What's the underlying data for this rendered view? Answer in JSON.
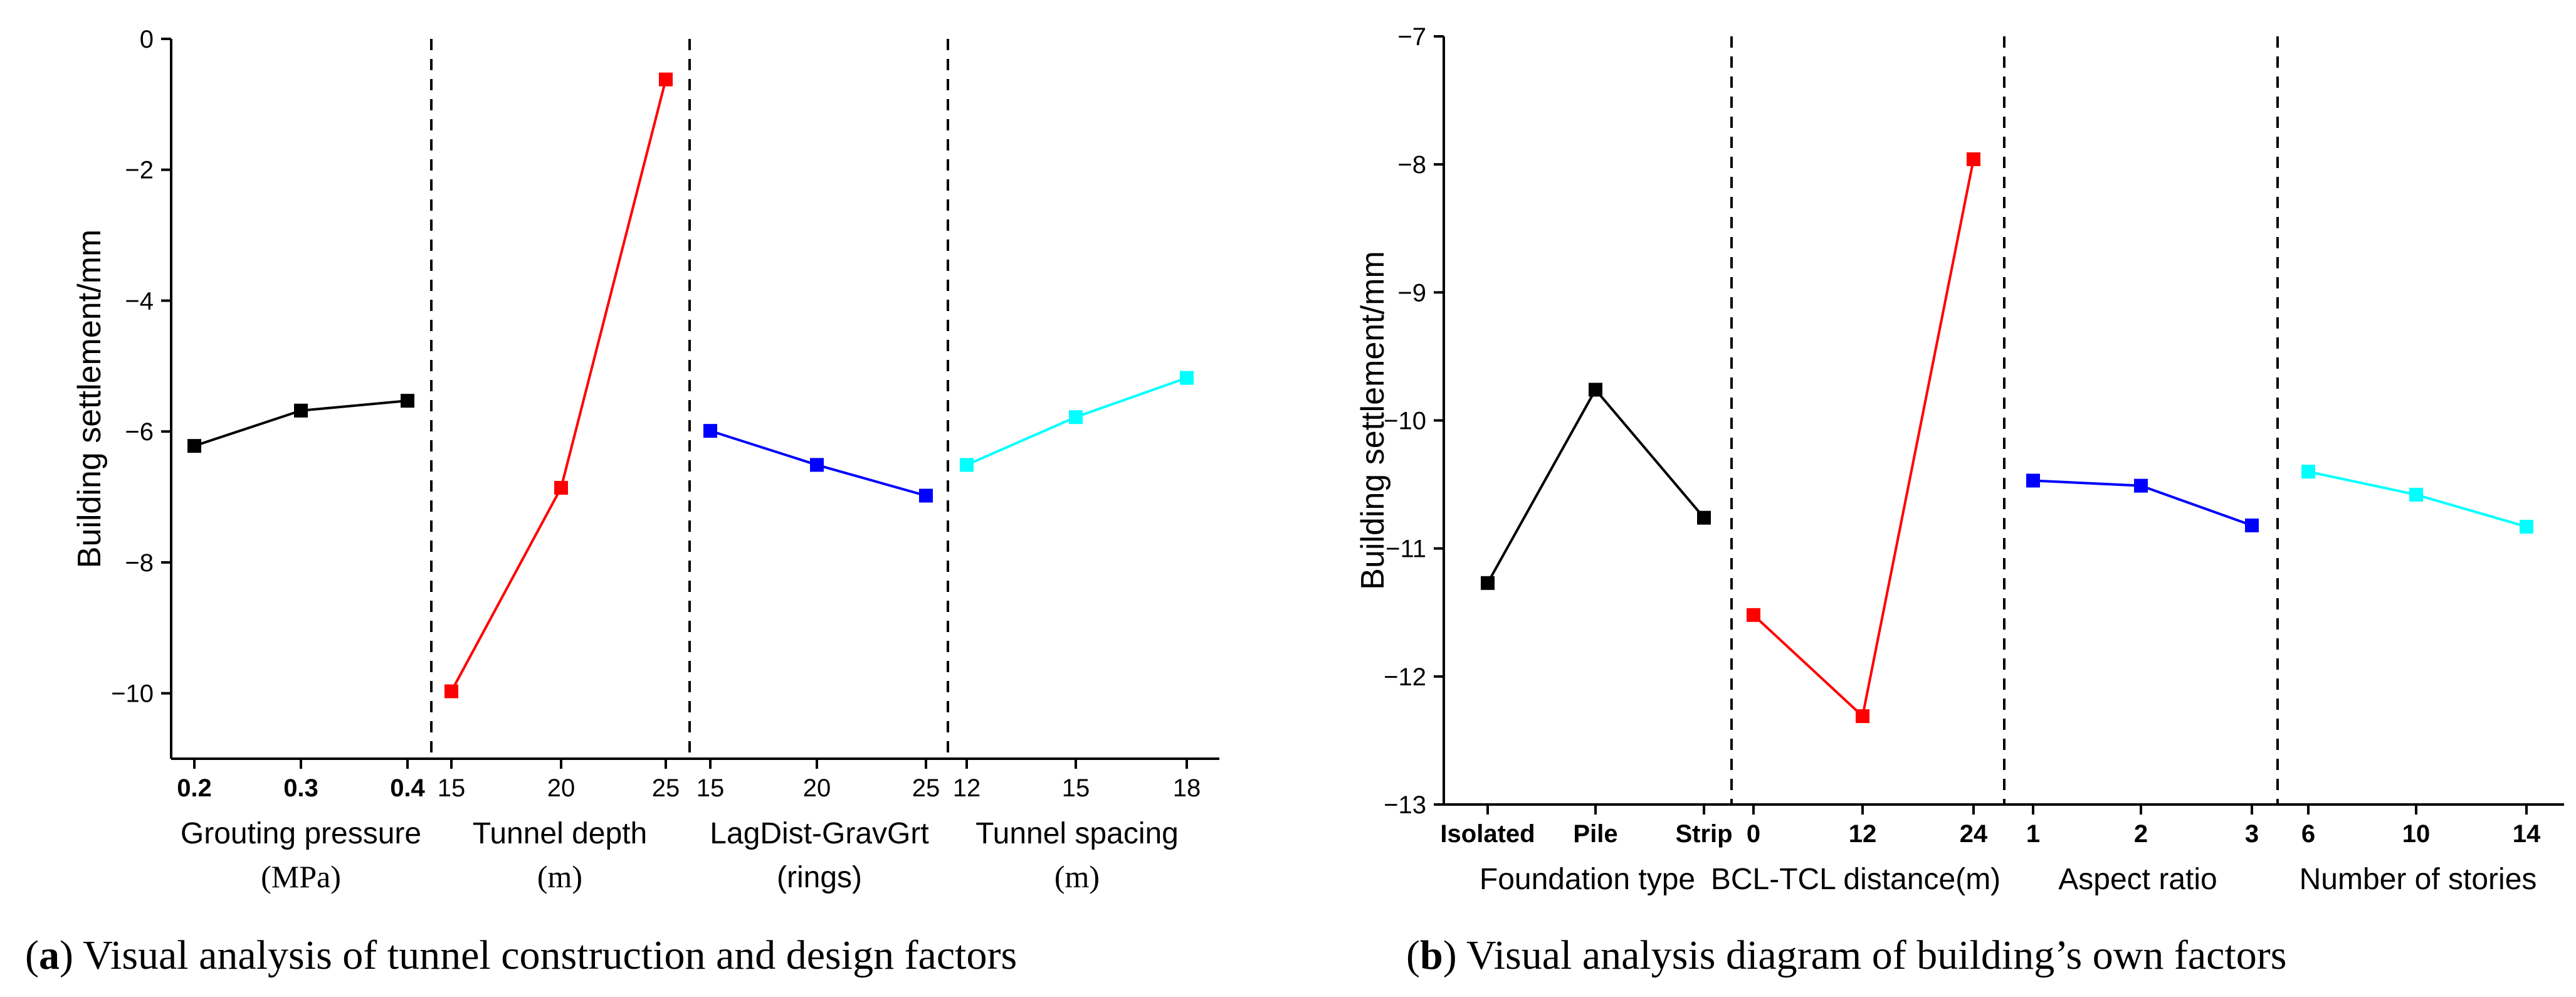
{
  "chart_data": [
    {
      "id": "a",
      "type": "line",
      "ylabel": "Building settlement/mm",
      "ylim": [
        -11,
        0
      ],
      "yticks": [
        0,
        -2,
        -4,
        -6,
        -8,
        -10
      ],
      "ytick_labels": [
        "0",
        "−2",
        "−4",
        "−6",
        "−8",
        "−10"
      ],
      "caption_letter": "a",
      "caption_text": " Visual analysis of tunnel construction and design factors",
      "groups": [
        {
          "name": "Grouting pressure",
          "unit": "(MPa)",
          "unit_style": "serif",
          "color": "#000000",
          "categories": [
            "0.2",
            "0.3",
            "0.4"
          ],
          "values": [
            -6.22,
            -5.68,
            -5.53
          ],
          "bold_ticks": true
        },
        {
          "name": "Tunnel depth",
          "unit": "(m)",
          "unit_style": "serif",
          "color": "#ff0000",
          "categories": [
            "15",
            "20",
            "25"
          ],
          "values": [
            -9.97,
            -6.86,
            -0.62
          ],
          "bold_ticks": false
        },
        {
          "name": "LagDist-GravGrt",
          "unit": "(rings)",
          "unit_style": "sans",
          "color": "#0000ff",
          "categories": [
            "15",
            "20",
            "25"
          ],
          "values": [
            -5.99,
            -6.51,
            -6.98
          ],
          "bold_ticks": false
        },
        {
          "name": "Tunnel spacing",
          "unit": "(m)",
          "unit_style": "serif",
          "color": "#00ffff",
          "categories": [
            "12",
            "15",
            "18"
          ],
          "values": [
            -6.51,
            -5.78,
            -5.18
          ],
          "bold_ticks": false
        }
      ]
    },
    {
      "id": "b",
      "type": "line",
      "ylabel": "Building settlement/mm",
      "ylim": [
        -13,
        -7
      ],
      "yticks": [
        -7,
        -8,
        -9,
        -10,
        -11,
        -12,
        -13
      ],
      "ytick_labels": [
        "−7",
        "−8",
        "−9",
        "−10",
        "−11",
        "−12",
        "−13"
      ],
      "caption_letter": "b",
      "caption_text": " Visual analysis diagram of building’s own factors",
      "groups": [
        {
          "name": "Foundation type",
          "unit": "",
          "unit_style": "sans",
          "color": "#000000",
          "categories": [
            "Isolated",
            "Pile",
            "Strip"
          ],
          "values": [
            -11.27,
            -9.76,
            -10.76
          ],
          "bold_ticks": true
        },
        {
          "name": "BCL-TCL distance(m)",
          "unit": "",
          "unit_style": "sans",
          "color": "#ff0000",
          "categories": [
            "0",
            "12",
            "24"
          ],
          "values": [
            -11.52,
            -12.31,
            -7.96
          ],
          "bold_ticks": true
        },
        {
          "name": "Aspect ratio",
          "unit": "",
          "unit_style": "sans",
          "color": "#0000ff",
          "categories": [
            "1",
            "2",
            "3"
          ],
          "values": [
            -10.47,
            -10.51,
            -10.82
          ],
          "bold_ticks": true
        },
        {
          "name": "Number of stories",
          "unit": "",
          "unit_style": "sans",
          "color": "#00ffff",
          "categories": [
            "6",
            "10",
            "14"
          ],
          "values": [
            -10.4,
            -10.58,
            -10.83
          ],
          "bold_ticks": true
        }
      ]
    }
  ]
}
